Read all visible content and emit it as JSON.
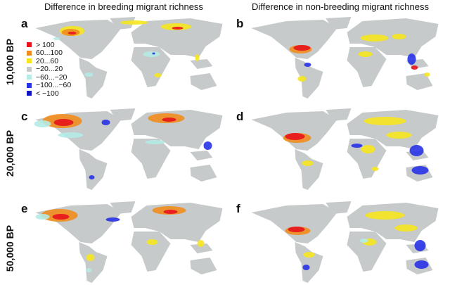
{
  "columns": [
    "Difference in breeding migrant richness",
    "Difference in non-breeding migrant richness"
  ],
  "rows": [
    "10,000 BP",
    "20,000 BP",
    "50,000 BP"
  ],
  "panels": [
    "a",
    "b",
    "c",
    "d",
    "e",
    "f"
  ],
  "legend": [
    {
      "label": "> 100",
      "color": "#e8141c"
    },
    {
      "label": "60...100",
      "color": "#f08c1e"
    },
    {
      "label": "20...60",
      "color": "#f5e61e"
    },
    {
      "label": "−20...20",
      "color": "#c6caca"
    },
    {
      "label": "−60...−20",
      "color": "#b4ebe6"
    },
    {
      "label": "−100...−60",
      "color": "#2832e6"
    },
    {
      "label": "< −100",
      "color": "#1414c8"
    }
  ]
}
